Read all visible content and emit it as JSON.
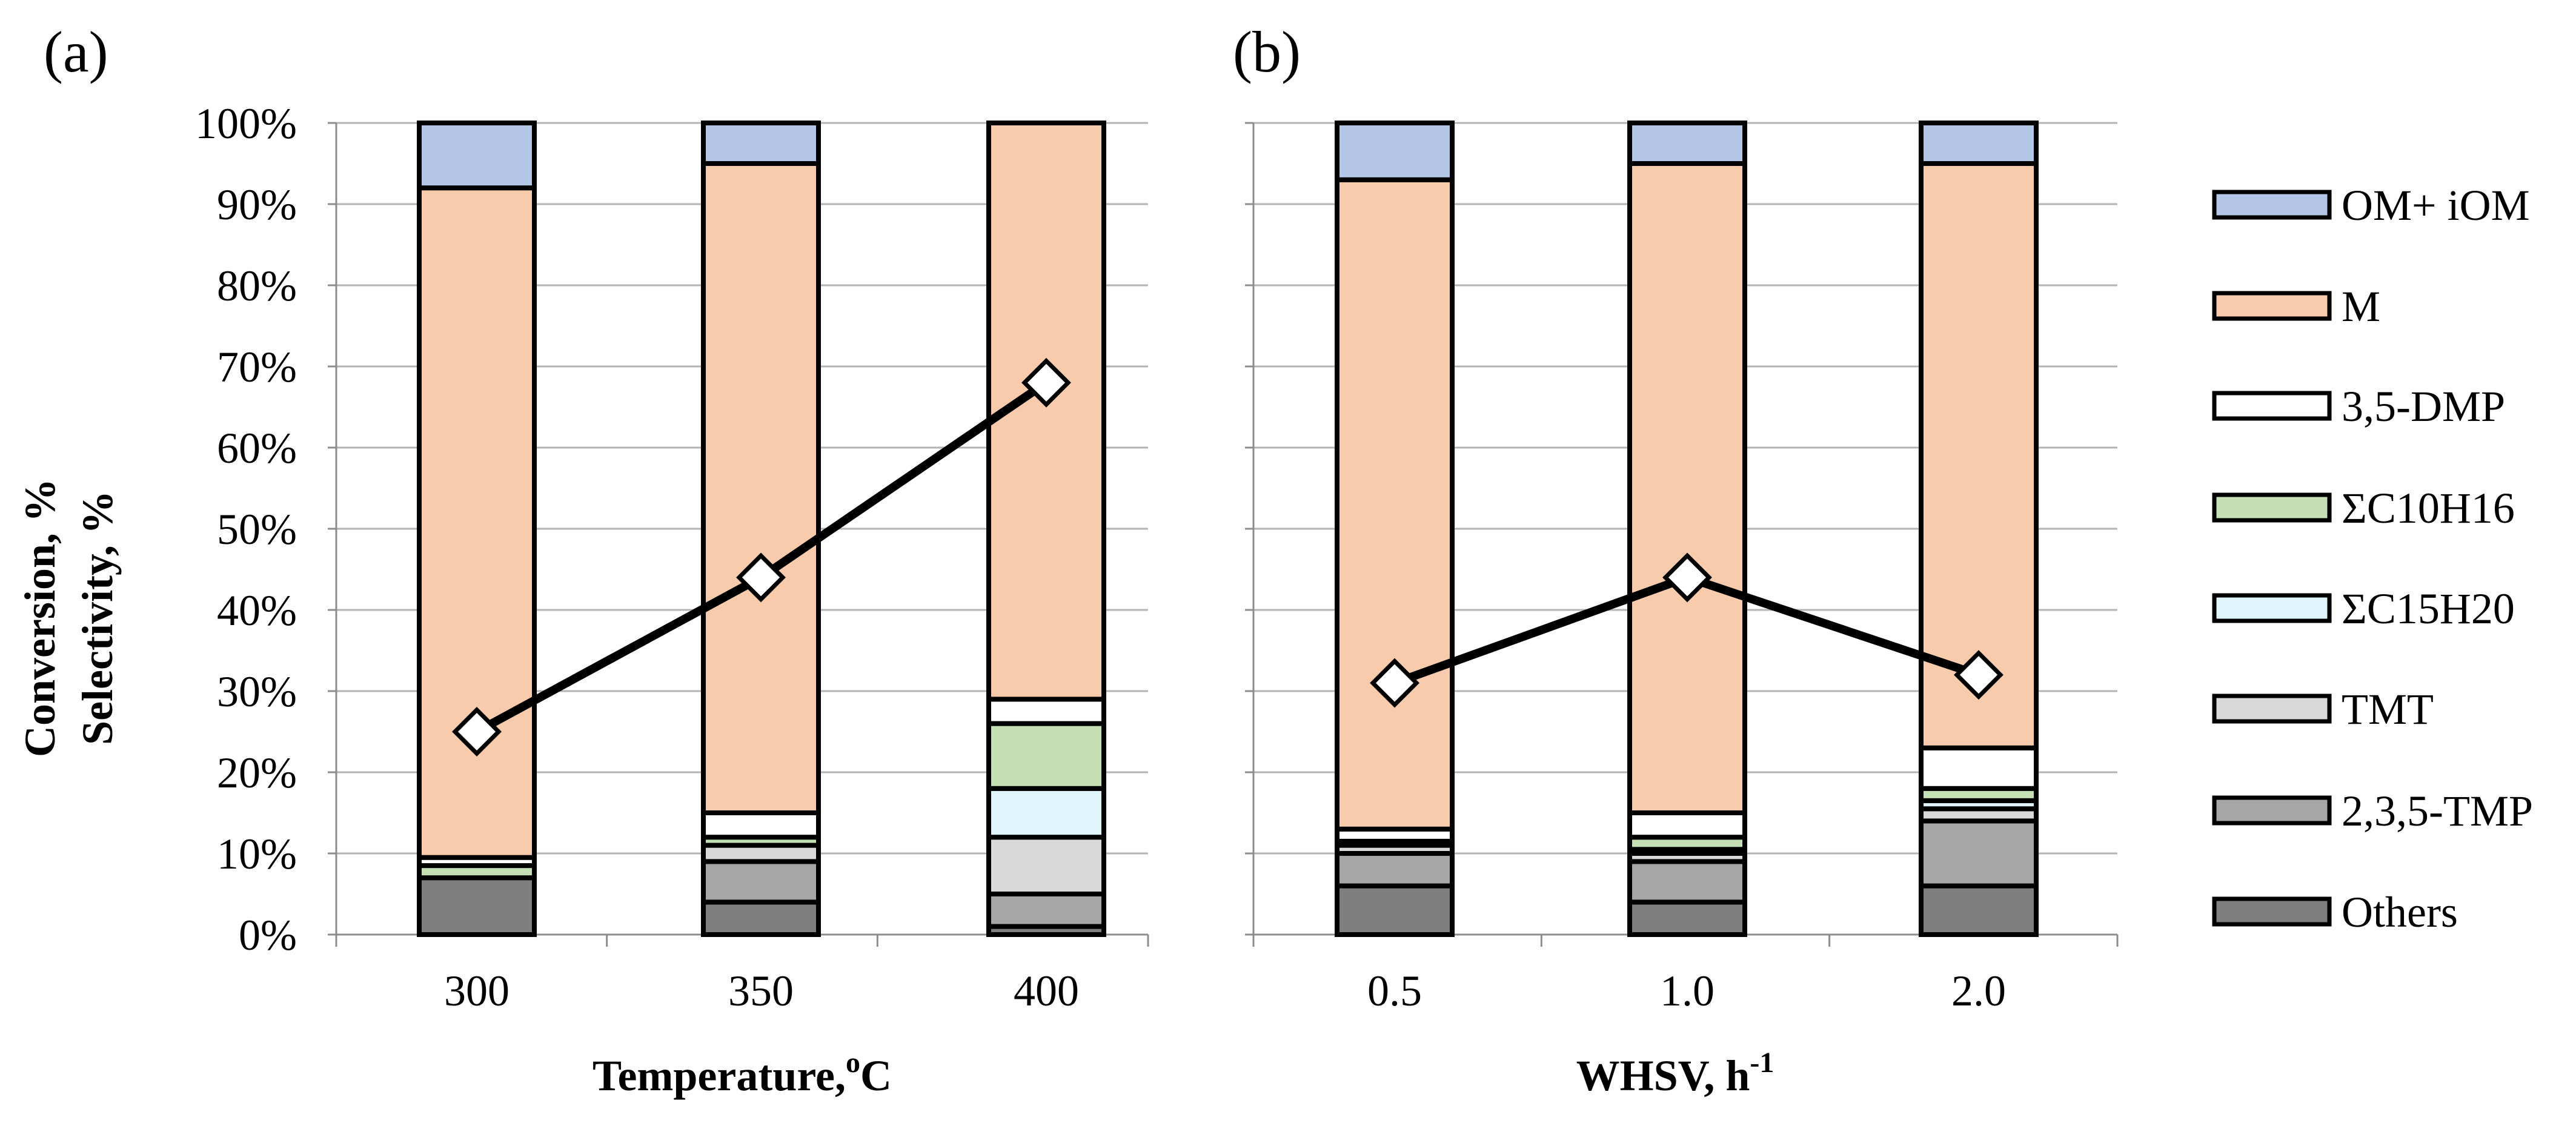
{
  "figure": {
    "y_axis_label_line1": "Conversion, %",
    "y_axis_label_line2": "Selectivity, %",
    "y_ticks": [
      "0%",
      "10%",
      "20%",
      "30%",
      "40%",
      "50%",
      "60%",
      "70%",
      "80%",
      "90%",
      "100%"
    ]
  },
  "legend": {
    "items": [
      {
        "label": "OM+ iOM",
        "color": "#b4c7e7"
      },
      {
        "label": "M",
        "color": "#f8cbad"
      },
      {
        "label": "3,5-DMP",
        "color": "#ffffff"
      },
      {
        "label": "ΣC10H16",
        "color": "#c5e0b4"
      },
      {
        "label": "ΣC15H20",
        "color": "#dff5fb"
      },
      {
        "label": "TMT",
        "color": "#d9d9d9"
      },
      {
        "label": "2,3,5-TMP",
        "color": "#a6a6a6"
      },
      {
        "label": "Others",
        "color": "#7f7f7f"
      }
    ]
  },
  "chart_data": [
    {
      "type": "bar",
      "panel": "(a)",
      "title": "(a)",
      "xlabel": "Temperature, °C",
      "xlabel_main": "Temperature,",
      "xlabel_sup": "o",
      "xlabel_unit": "C",
      "ylabel": "Conversion, % / Selectivity, %",
      "ylim": [
        0,
        100
      ],
      "stacked": true,
      "categories": [
        "300",
        "350",
        "400"
      ],
      "series": [
        {
          "name": "Others",
          "values": [
            7,
            4,
            1
          ]
        },
        {
          "name": "2,3,5-TMP",
          "values": [
            0,
            5,
            4
          ]
        },
        {
          "name": "TMT",
          "values": [
            0,
            2,
            7
          ]
        },
        {
          "name": "ΣC15H20",
          "values": [
            0,
            0,
            6
          ]
        },
        {
          "name": "ΣC10H16",
          "values": [
            1.5,
            1,
            8
          ]
        },
        {
          "name": "3,5-DMP",
          "values": [
            1,
            3,
            3
          ]
        },
        {
          "name": "M",
          "values": [
            82.5,
            80,
            71
          ]
        },
        {
          "name": "OM+ iOM",
          "values": [
            8,
            5,
            0
          ]
        }
      ],
      "conversion": {
        "name": "Conversion",
        "values": [
          25,
          44,
          68
        ]
      }
    },
    {
      "type": "bar",
      "panel": "(b)",
      "title": "(b)",
      "xlabel": "WHSV, h⁻¹",
      "xlabel_main": "WHSV, h",
      "xlabel_sup": "-1",
      "xlabel_unit": "",
      "ylabel": "Conversion, % / Selectivity, %",
      "ylim": [
        0,
        100
      ],
      "stacked": true,
      "categories": [
        "0.5",
        "1.0",
        "2.0"
      ],
      "series": [
        {
          "name": "Others",
          "values": [
            6,
            4,
            6
          ]
        },
        {
          "name": "2,3,5-TMP",
          "values": [
            4,
            5,
            8
          ]
        },
        {
          "name": "TMT",
          "values": [
            1,
            1,
            1.5
          ]
        },
        {
          "name": "ΣC15H20",
          "values": [
            0,
            0.5,
            1
          ]
        },
        {
          "name": "ΣC10H16",
          "values": [
            0.5,
            1.5,
            1.5
          ]
        },
        {
          "name": "3,5-DMP",
          "values": [
            1.5,
            3,
            5
          ]
        },
        {
          "name": "M",
          "values": [
            80,
            80,
            72
          ]
        },
        {
          "name": "OM+ iOM",
          "values": [
            7,
            5,
            5
          ]
        }
      ],
      "conversion": {
        "name": "Conversion",
        "values": [
          31,
          44,
          32
        ]
      }
    }
  ]
}
